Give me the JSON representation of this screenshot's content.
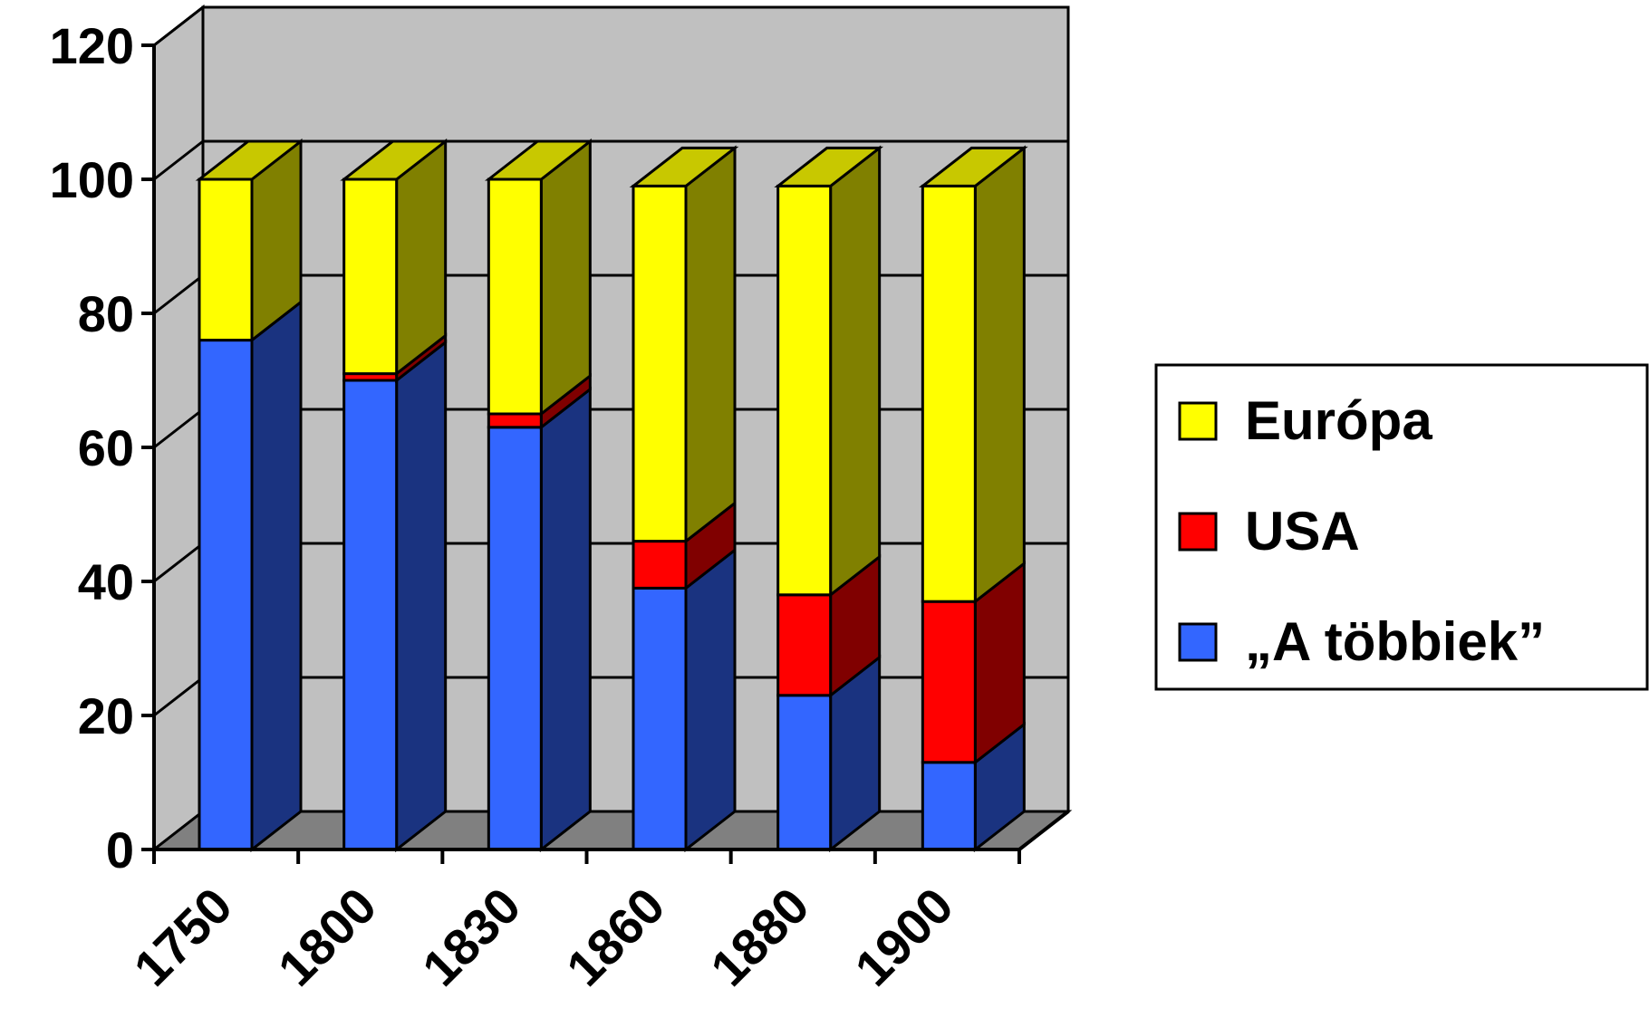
{
  "chart_data": {
    "type": "bar",
    "stacked": true,
    "three_d": true,
    "categories": [
      "1750",
      "1800",
      "1830",
      "1860",
      "1880",
      "1900"
    ],
    "series": [
      {
        "name": "„A többiek”",
        "values": [
          76,
          70,
          63,
          39,
          23,
          13
        ],
        "color": "#3366ff",
        "side_color": "#1a3380"
      },
      {
        "name": "USA",
        "values": [
          0,
          1,
          2,
          7,
          15,
          24
        ],
        "color": "#ff0000",
        "side_color": "#800000"
      },
      {
        "name": "Európa",
        "values": [
          24,
          29,
          35,
          53,
          61,
          62
        ],
        "color": "#ffff00",
        "side_color": "#808000"
      }
    ],
    "y_ticks": [
      "0",
      "20",
      "40",
      "60",
      "80",
      "100",
      "120"
    ],
    "ylim": [
      0,
      120
    ],
    "grid": true,
    "legend": {
      "placement": "right",
      "order": [
        "Európa",
        "USA",
        "„A többiek”"
      ]
    },
    "title": "",
    "xlabel": "",
    "ylabel": "",
    "wall_color": "#c0c0c0",
    "floor_color": "#808080",
    "top_cap_color": "#c8c800"
  }
}
